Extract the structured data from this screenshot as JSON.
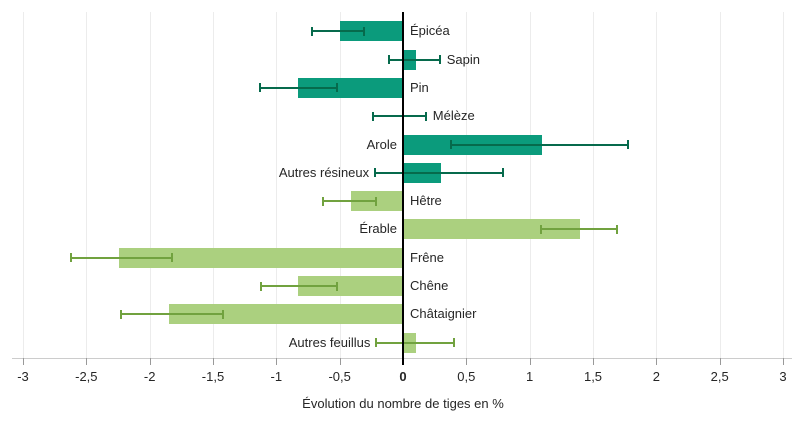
{
  "chart_data": {
    "type": "bar",
    "orientation": "horizontal",
    "title": "",
    "xlabel": "Évolution du nombre de tiges en %",
    "ylabel": "",
    "xlim": [
      -3,
      3
    ],
    "grid": true,
    "error_bars": true,
    "legend": "none",
    "xticks": {
      "values": [
        -3,
        -2.5,
        -2,
        -1.5,
        -1,
        -0.5,
        0,
        0.5,
        1,
        1.5,
        2,
        2.5,
        3
      ],
      "labels": [
        "-3",
        "-2,5",
        "-2",
        "-1,5",
        "-1",
        "-0,5",
        "0",
        "0,5",
        "1",
        "1,5",
        "2",
        "2,5",
        "3"
      ],
      "zero_label_bold": true
    },
    "groups": {
      "resineux": {
        "bar_color": "#0b9b7c",
        "error_color": "#066a4c"
      },
      "feuillus": {
        "bar_color": "#abd07f",
        "error_color": "#71a23f"
      }
    },
    "items": [
      {
        "label": "Épicéa",
        "value": -0.5,
        "ci_low": -0.72,
        "ci_high": -0.31,
        "group": "resineux",
        "label_side": "right"
      },
      {
        "label": "Sapin",
        "value": 0.1,
        "ci_low": -0.11,
        "ci_high": 0.29,
        "group": "resineux",
        "label_side": "right"
      },
      {
        "label": "Pin",
        "value": -0.83,
        "ci_low": -1.13,
        "ci_high": -0.52,
        "group": "resineux",
        "label_side": "right"
      },
      {
        "label": "Mélèze",
        "value": 0.0,
        "ci_low": -0.24,
        "ci_high": 0.18,
        "group": "resineux",
        "label_side": "right"
      },
      {
        "label": "Arole",
        "value": 1.1,
        "ci_low": 0.38,
        "ci_high": 1.78,
        "group": "resineux",
        "label_side": "left"
      },
      {
        "label": "Autres résineux",
        "value": 0.3,
        "ci_low": -0.22,
        "ci_high": 0.79,
        "group": "resineux",
        "label_side": "left"
      },
      {
        "label": "Hêtre",
        "value": -0.41,
        "ci_low": -0.63,
        "ci_high": -0.21,
        "group": "feuillus",
        "label_side": "right"
      },
      {
        "label": "Érable",
        "value": 1.4,
        "ci_low": 1.09,
        "ci_high": 1.69,
        "group": "feuillus",
        "label_side": "left"
      },
      {
        "label": "Frêne",
        "value": -2.24,
        "ci_low": -2.62,
        "ci_high": -1.82,
        "group": "feuillus",
        "label_side": "right"
      },
      {
        "label": "Chêne",
        "value": -0.83,
        "ci_low": -1.12,
        "ci_high": -0.52,
        "group": "feuillus",
        "label_side": "right"
      },
      {
        "label": "Châtaignier",
        "value": -1.85,
        "ci_low": -2.23,
        "ci_high": -1.42,
        "group": "feuillus",
        "label_side": "right"
      },
      {
        "label": "Autres feuillus",
        "value": 0.1,
        "ci_low": -0.21,
        "ci_high": 0.4,
        "group": "feuillus",
        "label_side": "left"
      }
    ]
  },
  "colors": {
    "background": "#ffffff",
    "grid": "#ececec",
    "axis_line": "#cccccc",
    "tick": "#999999",
    "zero_line": "#000000",
    "text": "#262626"
  }
}
